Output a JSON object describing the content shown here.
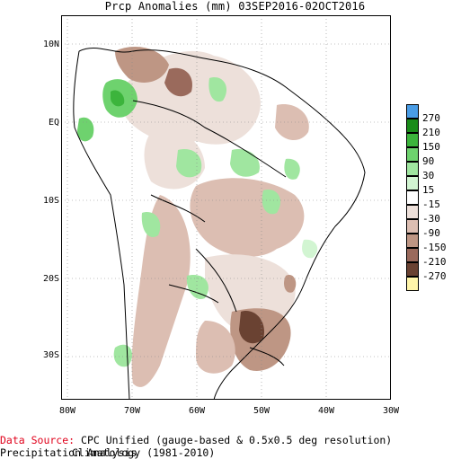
{
  "title": "Prcp Anomalies (mm) 03SEP2016-02OCT2016",
  "lat_labels": [
    "10N",
    "EQ",
    "10S",
    "20S",
    "30S"
  ],
  "lon_labels": [
    "80W",
    "70W",
    "60W",
    "50W",
    "40W",
    "30W"
  ],
  "legend": {
    "labels": [
      "270",
      "210",
      "150",
      "90",
      "30",
      "15",
      "-15",
      "-30",
      "-90",
      "-150",
      "-210",
      "-270"
    ],
    "colors": [
      "#4a9de6",
      "#1a8c1a",
      "#3cb43c",
      "#6ed26e",
      "#a0e6a0",
      "#d2f5d2",
      "#ffffff",
      "#ede0da",
      "#dcbeb2",
      "#be9684",
      "#9a6a5c",
      "#6a4232",
      "#fff5aa"
    ]
  },
  "footer": {
    "source_label": "Data Source:",
    "source_text": "CPC Unified (gauge-based & 0.5x0.5 deg resolution) Precipitation Analysis",
    "climatology": "Climatology (1981-2010)"
  }
}
